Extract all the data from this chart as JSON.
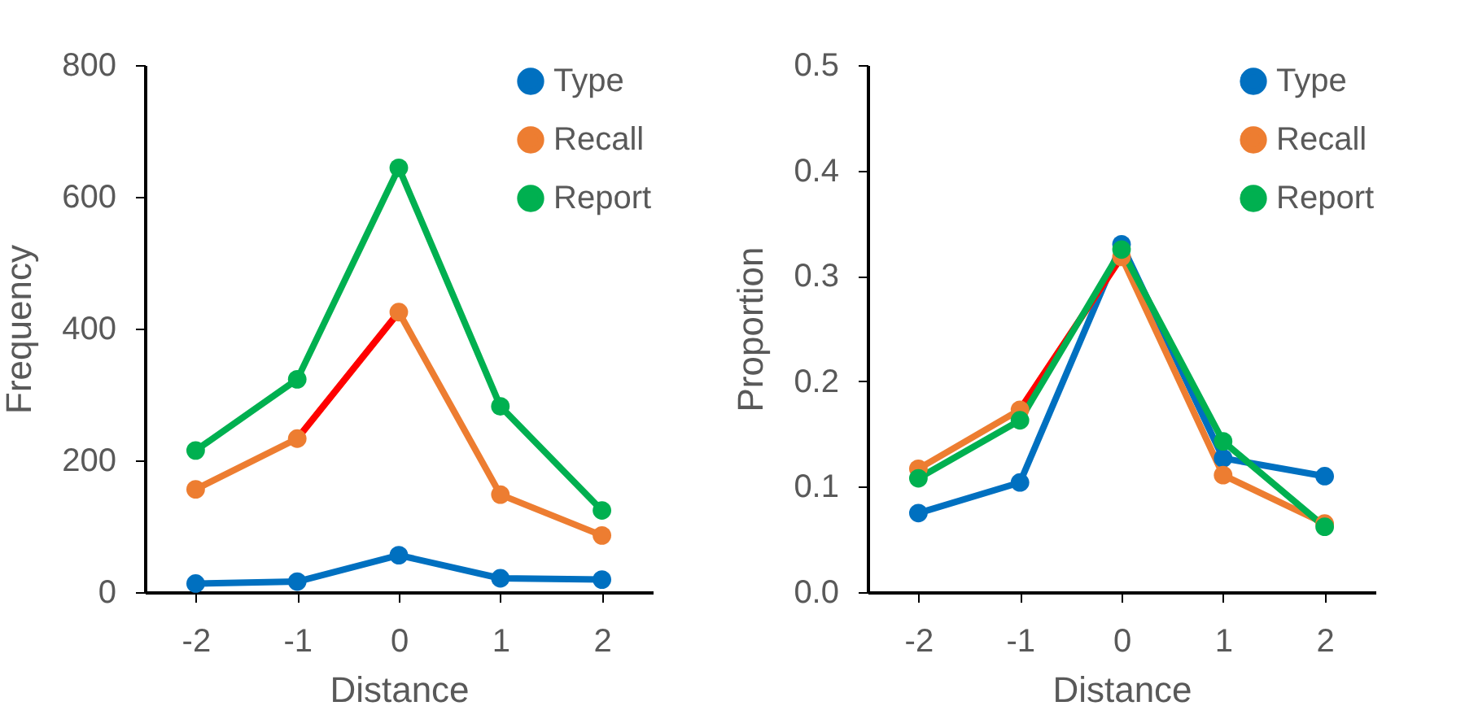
{
  "chart_data": [
    {
      "type": "line",
      "xlabel": "Distance",
      "ylabel": "Frequency",
      "x": [
        -2,
        -1,
        0,
        1,
        2
      ],
      "xlim": [
        -2.5,
        2.5
      ],
      "xticks": [
        -2,
        -1,
        0,
        1,
        2
      ],
      "ylim": [
        0,
        800
      ],
      "yticks": [
        0,
        200,
        400,
        600,
        800
      ],
      "legend": "top right",
      "marker": "circle",
      "series": [
        {
          "name": "Type",
          "color": "#0070c0",
          "values": [
            13,
            16,
            56,
            21,
            19
          ]
        },
        {
          "name": "Recall",
          "color": "#ed7d31",
          "values": [
            156,
            233,
            425,
            148,
            86
          ]
        },
        {
          "name": "Report",
          "color": "#00b050",
          "values": [
            215,
            323,
            644,
            282,
            124
          ]
        },
        {
          "type": "line",
          "color": "#ff0000",
          "marker": "none",
          "values": [
            null,
            233,
            425,
            null,
            null
          ]
        }
      ]
    },
    {
      "type": "line",
      "xlabel": "Distance",
      "ylabel": "Proportion",
      "x": [
        -2,
        -1,
        0,
        1,
        2
      ],
      "xlim": [
        -2.5,
        2.5
      ],
      "xticks": [
        -2,
        -1,
        0,
        1,
        2
      ],
      "ylim": [
        0,
        0.5
      ],
      "yticks": [
        {
          "value": 0,
          "label": "0.0"
        },
        0.1,
        0.2,
        0.3,
        0.4,
        0.5
      ],
      "legend": "top right",
      "marker": "circle",
      "series": [
        {
          "name": "Type",
          "color": "#0070c0",
          "values": [
            0.075,
            0.104,
            0.33,
            0.127,
            0.11
          ]
        },
        {
          "name": "Recall",
          "color": "#ed7d31",
          "values": [
            0.117,
            0.173,
            0.318,
            0.111,
            0.065
          ]
        },
        {
          "type": "line",
          "color": "#ff0000",
          "marker": "none",
          "values": [
            null,
            0.173,
            0.318,
            null,
            null
          ]
        },
        {
          "name": "Report",
          "color": "#00b050",
          "values": [
            0.108,
            0.163,
            0.325,
            0.143,
            0.062
          ]
        }
      ]
    }
  ]
}
